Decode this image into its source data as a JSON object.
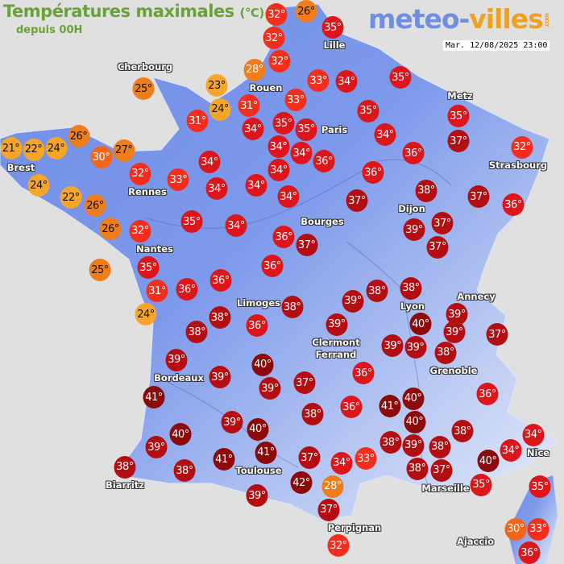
{
  "header": {
    "title": "Températures maximales",
    "unit": "(°C)",
    "subtitle": "depuis 00H",
    "logo_main": "meteo-",
    "logo_accent": "villes",
    "logo_tld": ".com",
    "datetime": "Mar. 12/08/2025 23:00"
  },
  "legend_colors": {
    "le24": "#f5a62a",
    "25to28": "#f07d1c",
    "30": "#f2661a",
    "31to33": "#f42d1c",
    "34to36": "#dc161a",
    "37to39": "#b40e12",
    "ge40": "#8c0a0a",
    "map_land_dark": "#6f8ee6",
    "map_land_light": "#e2e8f8",
    "sea": "#e0e0e0"
  },
  "cities": [
    "Lille",
    "Cherbourg",
    "Rouen",
    "Metz",
    "Paris",
    "Brest",
    "Strasbourg",
    "Rennes",
    "Dijon",
    "Bourges",
    "Nantes",
    "Annecy",
    "Limoges",
    "Lyon",
    "Clermont Ferrand",
    "Grenoble",
    "Bordeaux",
    "Nice",
    "Toulouse",
    "Biarritz",
    "Marseille",
    "Perpignan",
    "Ajaccio"
  ],
  "temperatures": [
    32,
    26,
    35,
    32,
    32,
    28,
    25,
    23,
    24,
    33,
    34,
    35,
    31,
    33,
    31,
    34,
    35,
    35,
    35,
    34,
    35,
    37,
    32,
    21,
    22,
    24,
    26,
    30,
    27,
    34,
    34,
    36,
    34,
    34,
    36,
    36,
    24,
    22,
    26,
    32,
    33,
    34,
    34,
    34,
    37,
    38,
    37,
    36,
    26,
    32,
    35,
    34,
    36,
    37,
    39,
    37,
    37,
    25,
    35,
    31,
    36,
    36,
    36,
    24,
    38,
    38,
    36,
    38,
    39,
    38,
    38,
    40,
    39,
    39,
    39,
    39,
    37,
    39,
    38,
    39,
    39,
    40,
    39,
    37,
    36,
    36,
    41,
    36,
    38,
    41,
    40,
    39,
    40,
    40,
    39,
    40,
    38,
    39,
    38,
    34,
    34,
    38,
    38,
    41,
    41,
    37,
    33,
    34,
    38,
    38,
    37,
    40,
    42,
    39,
    28,
    37,
    32,
    35,
    35,
    30,
    33,
    36
  ],
  "degree_suffix": "°"
}
